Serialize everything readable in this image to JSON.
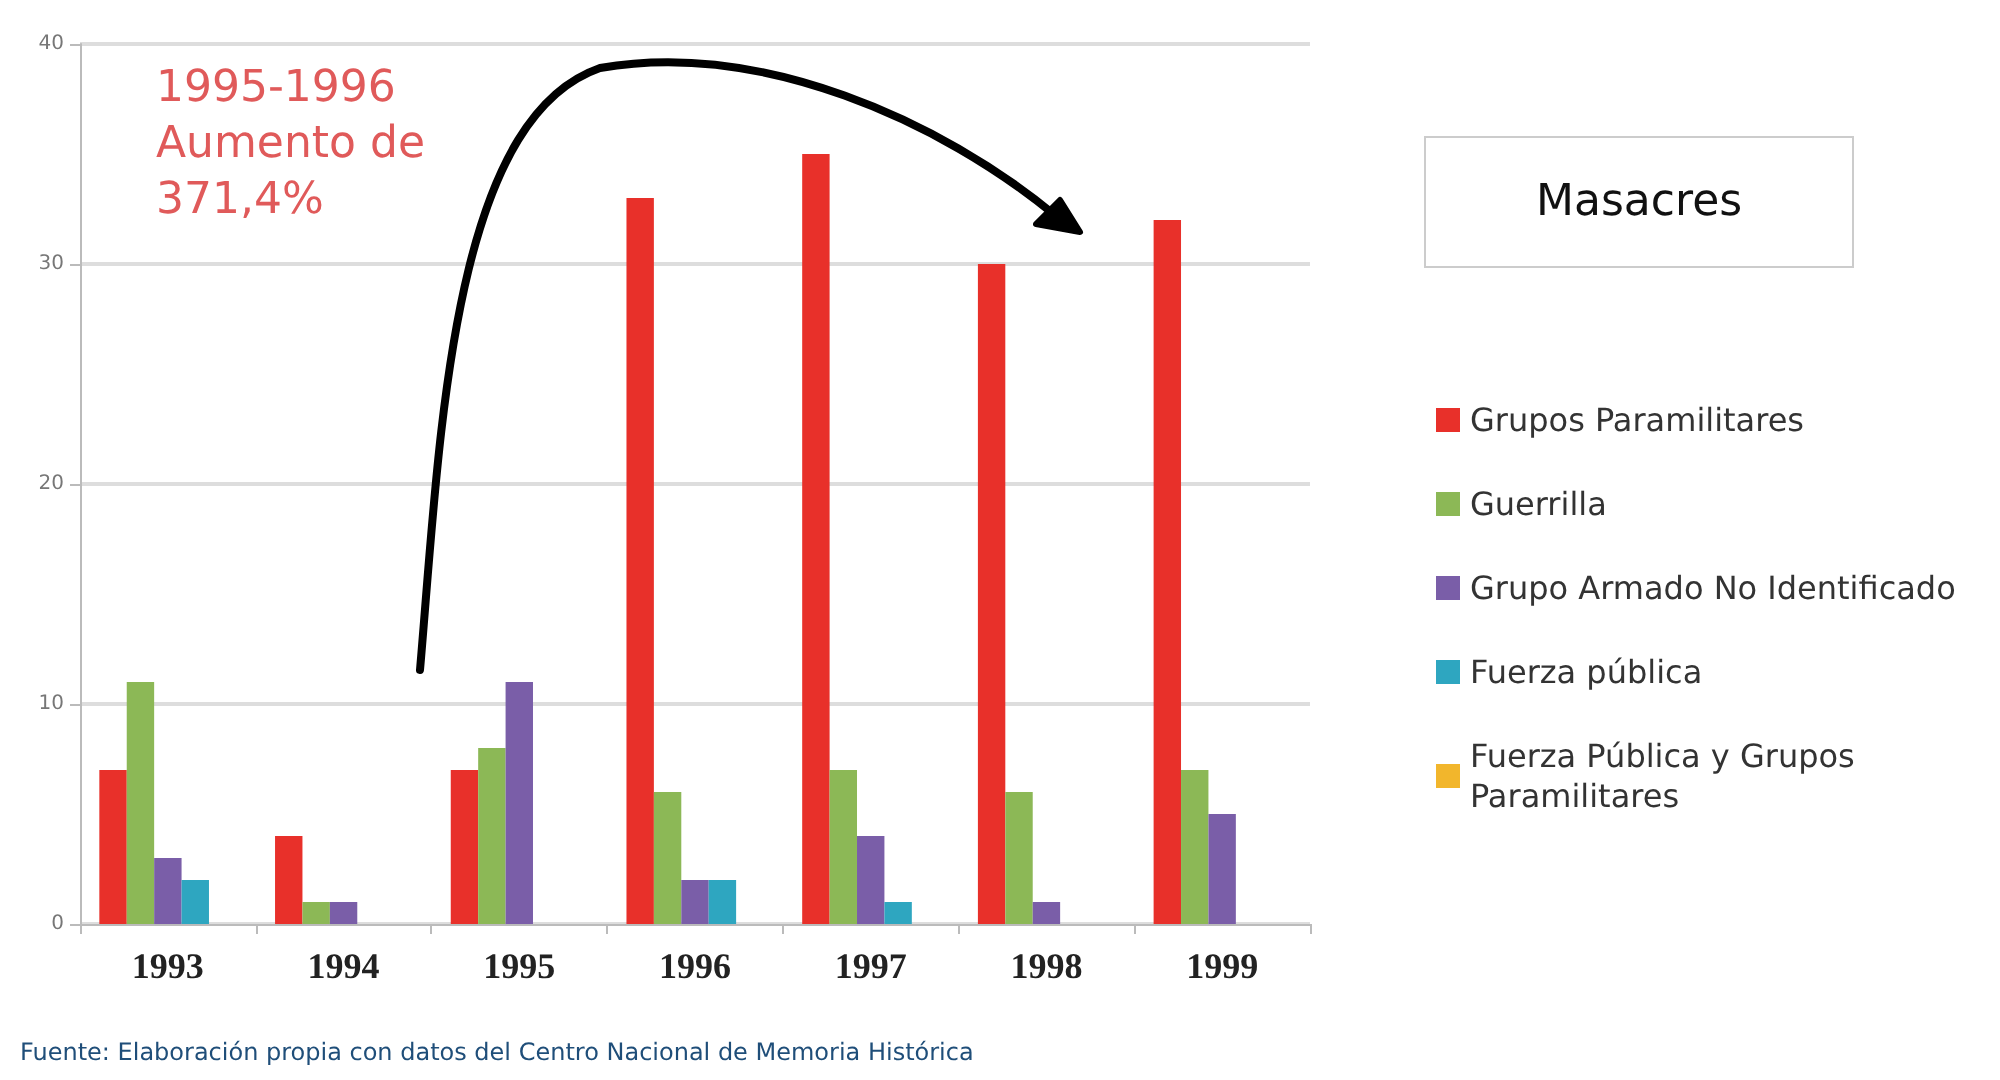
{
  "chart_data": {
    "type": "bar",
    "title": "Masacres",
    "categories": [
      "1993",
      "1994",
      "1995",
      "1996",
      "1997",
      "1998",
      "1999"
    ],
    "series": [
      {
        "name": "Grupos Paramilitares",
        "color": "#e8302a",
        "values": [
          7,
          4,
          7,
          33,
          35,
          30,
          32
        ]
      },
      {
        "name": "Guerrilla",
        "color": "#8cb856",
        "values": [
          11,
          1,
          8,
          6,
          7,
          6,
          7
        ]
      },
      {
        "name": "Grupo Armado No Identificado",
        "color": "#7a5ea8",
        "values": [
          3,
          1,
          11,
          2,
          4,
          1,
          5
        ]
      },
      {
        "name": "Fuerza pública",
        "color": "#2ea6c0",
        "values": [
          2,
          0,
          0,
          2,
          1,
          0,
          0
        ]
      },
      {
        "name": "Fuerza Pública y Grupos Paramilitares",
        "color": "#f2b62c",
        "values": [
          0,
          0,
          0,
          0,
          0,
          0,
          0
        ]
      }
    ],
    "ylim": [
      0,
      40
    ],
    "yticks": [
      0,
      10,
      20,
      30,
      40
    ],
    "grid": "y",
    "legend": "right",
    "annotations": [
      "1995-1996\nAumento de\n371,4%",
      "Fuente: Elaboración propia con datos del Centro Nacional de Memoria Histórica"
    ]
  }
}
